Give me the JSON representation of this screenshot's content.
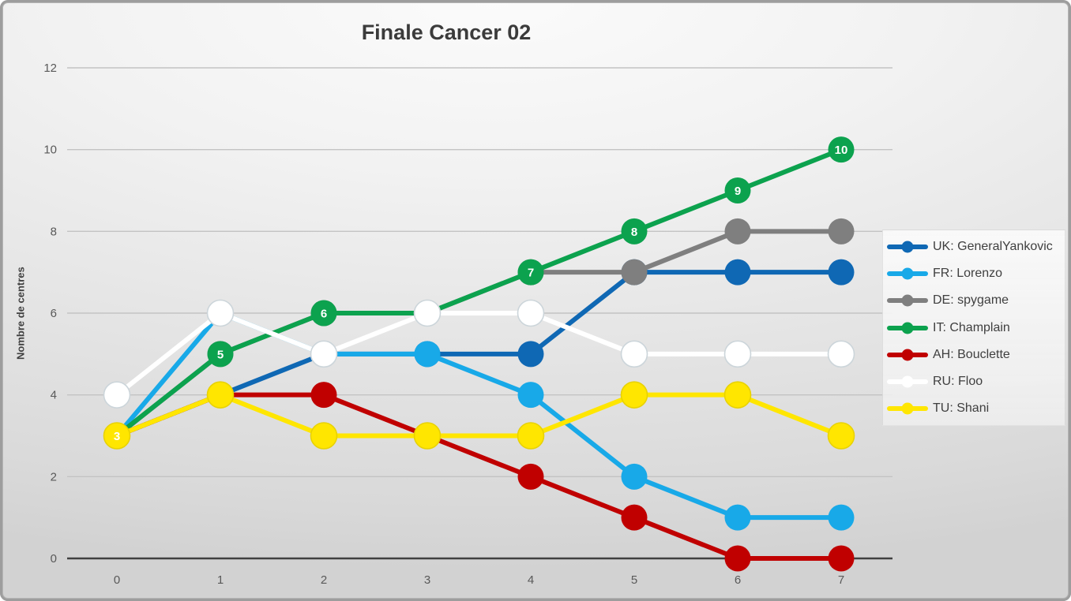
{
  "title": "Finale Cancer 02",
  "y_axis_title": "Nombre de centres",
  "colors": {
    "background_light": "#f7f7f7",
    "background_dark": "#d2d2d2",
    "frame_border": "#9d9d9d",
    "gridline": "#c3c3c3",
    "axis_line": "#404040",
    "tick_label": "#595959",
    "title_text": "#3b3b3b",
    "legend_text": "#3f3f3f",
    "data_label_text": "#ffffff"
  },
  "chart_data": {
    "type": "line",
    "title": "Finale Cancer 02",
    "xlabel": "",
    "ylabel": "Nombre de centres",
    "x": [
      0,
      1,
      2,
      3,
      4,
      5,
      6,
      7
    ],
    "x_tick_labels": [
      "0",
      "1",
      "2",
      "3",
      "4",
      "5",
      "6",
      "7"
    ],
    "y_ticks": [
      0,
      2,
      4,
      6,
      8,
      10,
      12
    ],
    "y_tick_labels": [
      "0",
      "2",
      "4",
      "6",
      "8",
      "10",
      "12"
    ],
    "ylim": [
      0,
      12
    ],
    "grid": true,
    "legend_position": "right",
    "marker_style": "filled-circle",
    "series": [
      {
        "name": "UK: GeneralYankovic",
        "color": "#0f68b4",
        "values": [
          3,
          4,
          5,
          5,
          5,
          7,
          7,
          7
        ]
      },
      {
        "name": "FR: Lorenzo",
        "color": "#18a9e8",
        "values": [
          3,
          6,
          5,
          5,
          4,
          2,
          1,
          1
        ]
      },
      {
        "name": "DE: spygame",
        "color": "#7f7f7f",
        "values": [
          3,
          5,
          6,
          6,
          7,
          7,
          8,
          8
        ]
      },
      {
        "name": "IT: Champlain",
        "color": "#0ca24e",
        "values": [
          3,
          5,
          6,
          6,
          7,
          8,
          9,
          10
        ],
        "data_labels": [
          "3",
          "5",
          "6",
          "6",
          "7",
          "8",
          "9",
          "10"
        ],
        "data_label_color": "#ffffff"
      },
      {
        "name": "AH: Bouclette",
        "color": "#c00000",
        "values": [
          3,
          4,
          4,
          3,
          2,
          1,
          0,
          0
        ]
      },
      {
        "name": "RU: Floo",
        "color": "#ffffff",
        "marker_stroke": "#ccd5da",
        "values": [
          4,
          6,
          5,
          6,
          6,
          5,
          5,
          5
        ]
      },
      {
        "name": "TU: Shani",
        "color": "#ffe600",
        "marker_stroke": "#e8d200",
        "values": [
          3,
          4,
          3,
          3,
          3,
          4,
          4,
          3
        ]
      }
    ]
  }
}
